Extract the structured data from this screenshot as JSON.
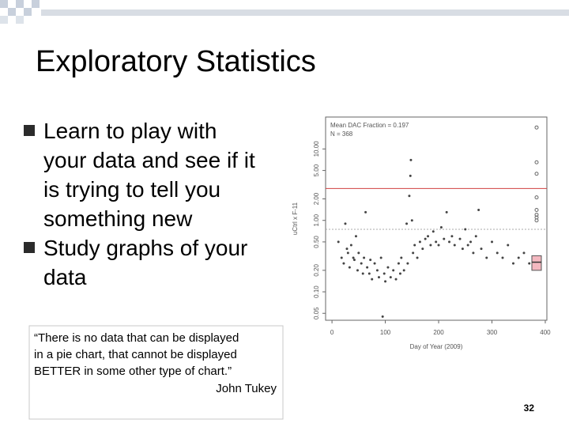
{
  "title": "Exploratory Statistics",
  "bullets": [
    {
      "lines": [
        "Learn to play with",
        "your data and see if it",
        "is trying to tell you",
        "something new"
      ]
    },
    {
      "lines": [
        "Study graphs of your",
        "data"
      ]
    }
  ],
  "quote_lines": [
    "“There is no data that can be displayed",
    "in a pie chart, that cannot be displayed",
    "BETTER in some other type of chart.”"
  ],
  "attribution": "John Tukey",
  "page_number": "32",
  "chart_data": {
    "type": "scatter",
    "annotations": [
      "Mean DAC Fraction = 0.197",
      "N = 368"
    ],
    "x_label": "Day of Year (2009)",
    "y_label": "uCtrl x F-11",
    "log_y": true,
    "xlim": [
      -12,
      403
    ],
    "ylim": [
      0.04,
      28
    ],
    "xticks": [
      0,
      100,
      200,
      300,
      400
    ],
    "yticks": [
      0.05,
      {
        "value": 0.1,
        "label": "0.10"
      },
      {
        "value": 0.2,
        "label": "0.20"
      },
      {
        "value": 0.5,
        "label": "0.50"
      },
      {
        "value": 1,
        "label": "1.00"
      },
      {
        "value": 2,
        "label": "2.00"
      },
      {
        "value": 5,
        "label": "5.00"
      },
      {
        "value": 10,
        "label": "10.00"
      }
    ],
    "color": "#444444",
    "reference_lines": [
      {
        "value": 2.8,
        "color": "#d04040"
      },
      {
        "value": 0.75,
        "color": "#aaaaaa"
      }
    ],
    "box": {
      "q1": 0.2,
      "median": 0.26,
      "q3": 0.32,
      "color": "#f4b8c0"
    },
    "outliers": [
      20,
      6.5,
      4.5,
      2.1,
      1.4,
      1.2,
      1.1,
      1.0
    ],
    "x": [
      12,
      18,
      22,
      25,
      28,
      30,
      33,
      36,
      40,
      42,
      45,
      48,
      50,
      55,
      58,
      60,
      63,
      66,
      70,
      72,
      75,
      80,
      85,
      88,
      92,
      95,
      98,
      100,
      105,
      110,
      115,
      120,
      125,
      128,
      130,
      135,
      140,
      142,
      145,
      147,
      148,
      150,
      152,
      155,
      160,
      165,
      170,
      175,
      180,
      185,
      190,
      195,
      200,
      205,
      210,
      215,
      220,
      225,
      230,
      240,
      245,
      250,
      255,
      260,
      265,
      270,
      275,
      280,
      290,
      300,
      310,
      320,
      330,
      340,
      350,
      360,
      370,
      380,
      390
    ],
    "values": [
      0.5,
      0.3,
      0.25,
      0.9,
      0.4,
      0.35,
      0.22,
      0.45,
      0.3,
      0.28,
      0.6,
      0.2,
      0.35,
      0.25,
      0.18,
      0.3,
      1.3,
      0.22,
      0.18,
      0.28,
      0.15,
      0.25,
      0.2,
      0.16,
      0.3,
      0.045,
      0.18,
      0.14,
      0.22,
      0.16,
      0.2,
      0.15,
      0.25,
      0.18,
      0.3,
      0.2,
      0.9,
      0.25,
      2.2,
      4.2,
      7.0,
      1.0,
      0.35,
      0.45,
      0.3,
      0.5,
      0.4,
      0.55,
      0.6,
      0.45,
      0.7,
      0.5,
      0.45,
      0.8,
      0.55,
      1.3,
      0.5,
      0.6,
      0.45,
      0.55,
      0.4,
      0.75,
      0.45,
      0.5,
      0.35,
      0.6,
      1.4,
      0.4,
      0.3,
      0.5,
      0.35,
      0.3,
      0.45,
      0.25,
      0.3,
      0.35,
      0.25,
      0.3,
      0.28
    ]
  }
}
